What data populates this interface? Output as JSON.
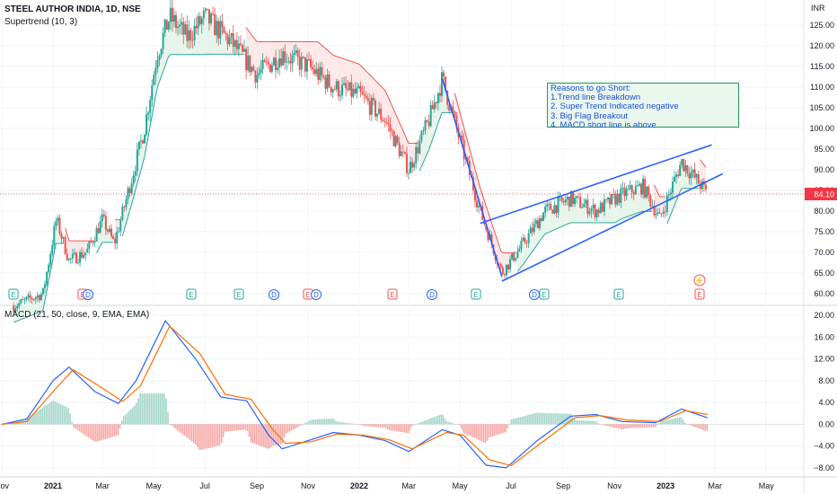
{
  "header": {
    "symbol": "STEEL AUTHOR INDIA, 1D, NSE",
    "indicator": "Supertrend (10, 3)",
    "macd_label": "MACD (21, 50, close, 9, EMA, EMA)",
    "currency": "INR"
  },
  "annotation": {
    "title": "Reasons to go Short:",
    "lines": [
      "1.Trend line Breakdown",
      "2. Super Trend Indicated negative",
      "3. Big Flag Breakout",
      "4. MACD short line is above"
    ]
  },
  "colors": {
    "up": "#26a69a",
    "down": "#ef5350",
    "trendline": "#2962ff",
    "macd": "#2962ff",
    "signal": "#ff6d00",
    "st_up_fill": "#e6f4ea",
    "st_down_fill": "#fde8e8",
    "price_tag": "#f23645"
  },
  "chart_data": [
    {
      "type": "candlestick",
      "title": "STEEL AUTHOR INDIA, 1D, NSE",
      "ylabel": "INR",
      "ylim": [
        58,
        130
      ],
      "y_ticks": [
        60.0,
        65.0,
        70.0,
        75.0,
        80.0,
        85.0,
        90.0,
        95.0,
        100.0,
        105.0,
        110.0,
        115.0,
        120.0,
        125.0
      ],
      "x_ticks": [
        "Nov",
        "2021",
        "Mar",
        "May",
        "Jul",
        "Sep",
        "Nov",
        "2022",
        "Mar",
        "May",
        "Jul",
        "Sep",
        "Nov",
        "2023",
        "Mar",
        "May"
      ],
      "last_price": "84.10",
      "approx_close_path": [
        {
          "x": "2020-11-15",
          "y": 57
        },
        {
          "x": "2020-12-20",
          "y": 60
        },
        {
          "x": "2021-01-05",
          "y": 78
        },
        {
          "x": "2021-01-20",
          "y": 68
        },
        {
          "x": "2021-02-10",
          "y": 70
        },
        {
          "x": "2021-03-01",
          "y": 78
        },
        {
          "x": "2021-03-15",
          "y": 72
        },
        {
          "x": "2021-04-05",
          "y": 88
        },
        {
          "x": "2021-04-20",
          "y": 100
        },
        {
          "x": "2021-05-05",
          "y": 118
        },
        {
          "x": "2021-05-20",
          "y": 127
        },
        {
          "x": "2021-06-10",
          "y": 122
        },
        {
          "x": "2021-07-01",
          "y": 127
        },
        {
          "x": "2021-08-01",
          "y": 121
        },
        {
          "x": "2021-09-01",
          "y": 113
        },
        {
          "x": "2021-10-01",
          "y": 118
        },
        {
          "x": "2021-11-01",
          "y": 115
        },
        {
          "x": "2021-12-01",
          "y": 110
        },
        {
          "x": "2022-01-01",
          "y": 108
        },
        {
          "x": "2022-02-01",
          "y": 102
        },
        {
          "x": "2022-03-01",
          "y": 90
        },
        {
          "x": "2022-03-25",
          "y": 102
        },
        {
          "x": "2022-04-10",
          "y": 112
        },
        {
          "x": "2022-05-01",
          "y": 97
        },
        {
          "x": "2022-05-25",
          "y": 80
        },
        {
          "x": "2022-06-20",
          "y": 65
        },
        {
          "x": "2022-07-15",
          "y": 72
        },
        {
          "x": "2022-08-10",
          "y": 80
        },
        {
          "x": "2022-09-10",
          "y": 83
        },
        {
          "x": "2022-10-10",
          "y": 80
        },
        {
          "x": "2022-11-10",
          "y": 84
        },
        {
          "x": "2022-12-05",
          "y": 86
        },
        {
          "x": "2022-12-25",
          "y": 78
        },
        {
          "x": "2023-01-20",
          "y": 92
        },
        {
          "x": "2023-02-05",
          "y": 88
        },
        {
          "x": "2023-02-20",
          "y": 84.1
        }
      ],
      "trendlines": [
        {
          "name": "downtrend",
          "from": {
            "x": "2022-04-10",
            "y": 112
          },
          "to": {
            "x": "2022-06-20",
            "y": 64
          }
        },
        {
          "name": "upper-channel",
          "from": {
            "x": "2022-05-25",
            "y": 77
          },
          "to": {
            "x": "2023-02-25",
            "y": 96
          }
        },
        {
          "name": "lower-channel",
          "from": {
            "x": "2022-06-20",
            "y": 63
          },
          "to": {
            "x": "2023-03-10",
            "y": 89
          }
        }
      ],
      "events": [
        "E",
        "E",
        "D",
        "E",
        "E",
        "D",
        "E",
        "D",
        "E",
        "D",
        "E",
        "E",
        "E"
      ]
    },
    {
      "type": "line",
      "title": "MACD (21, 50, close, 9, EMA, EMA)",
      "ylim": [
        -9.5,
        21
      ],
      "y_ticks": [
        -8.0,
        -4.0,
        0.0,
        4.0,
        8.0,
        12.0,
        16.0,
        20.0
      ],
      "series": [
        {
          "name": "MACD",
          "color": "#2962ff",
          "points": [
            {
              "x": "2020-11-01",
              "y": 0
            },
            {
              "x": "2020-12-01",
              "y": 1
            },
            {
              "x": "2021-01-01",
              "y": 8
            },
            {
              "x": "2021-01-20",
              "y": 10.5
            },
            {
              "x": "2021-02-20",
              "y": 6
            },
            {
              "x": "2021-03-20",
              "y": 3.8
            },
            {
              "x": "2021-04-10",
              "y": 8
            },
            {
              "x": "2021-05-15",
              "y": 19
            },
            {
              "x": "2021-06-20",
              "y": 12
            },
            {
              "x": "2021-07-20",
              "y": 5
            },
            {
              "x": "2021-08-20",
              "y": 4.3
            },
            {
              "x": "2021-09-15",
              "y": -2
            },
            {
              "x": "2021-10-01",
              "y": -4.5
            },
            {
              "x": "2021-11-01",
              "y": -3
            },
            {
              "x": "2021-12-01",
              "y": -1.5
            },
            {
              "x": "2022-01-01",
              "y": -2
            },
            {
              "x": "2022-02-01",
              "y": -3
            },
            {
              "x": "2022-03-01",
              "y": -5
            },
            {
              "x": "2022-04-10",
              "y": -1
            },
            {
              "x": "2022-05-01",
              "y": -2
            },
            {
              "x": "2022-06-01",
              "y": -7.5
            },
            {
              "x": "2022-06-25",
              "y": -8
            },
            {
              "x": "2022-08-01",
              "y": -3
            },
            {
              "x": "2022-09-10",
              "y": 1.5
            },
            {
              "x": "2022-10-10",
              "y": 1.8
            },
            {
              "x": "2022-11-10",
              "y": 0.5
            },
            {
              "x": "2022-12-20",
              "y": 0.3
            },
            {
              "x": "2023-01-20",
              "y": 2.8
            },
            {
              "x": "2023-02-20",
              "y": 1.2
            }
          ]
        },
        {
          "name": "Signal",
          "color": "#ff6d00",
          "points": [
            {
              "x": "2020-11-01",
              "y": 0
            },
            {
              "x": "2020-12-01",
              "y": 0.5
            },
            {
              "x": "2021-01-01",
              "y": 6
            },
            {
              "x": "2021-01-25",
              "y": 10
            },
            {
              "x": "2021-02-25",
              "y": 7
            },
            {
              "x": "2021-03-25",
              "y": 4.2
            },
            {
              "x": "2021-04-15",
              "y": 7
            },
            {
              "x": "2021-05-20",
              "y": 18
            },
            {
              "x": "2021-06-25",
              "y": 13
            },
            {
              "x": "2021-07-25",
              "y": 5.5
            },
            {
              "x": "2021-08-25",
              "y": 4.6
            },
            {
              "x": "2021-09-20",
              "y": -1
            },
            {
              "x": "2021-10-05",
              "y": -3.5
            },
            {
              "x": "2021-11-05",
              "y": -3.2
            },
            {
              "x": "2021-12-05",
              "y": -1.8
            },
            {
              "x": "2022-01-05",
              "y": -2
            },
            {
              "x": "2022-02-05",
              "y": -2.8
            },
            {
              "x": "2022-03-05",
              "y": -4.5
            },
            {
              "x": "2022-04-15",
              "y": -1.5
            },
            {
              "x": "2022-05-05",
              "y": -2
            },
            {
              "x": "2022-06-05",
              "y": -6.5
            },
            {
              "x": "2022-07-01",
              "y": -7.6
            },
            {
              "x": "2022-08-05",
              "y": -3.5
            },
            {
              "x": "2022-09-15",
              "y": 1.2
            },
            {
              "x": "2022-10-15",
              "y": 1.6
            },
            {
              "x": "2022-11-15",
              "y": 0.8
            },
            {
              "x": "2022-12-25",
              "y": 0.5
            },
            {
              "x": "2023-01-25",
              "y": 2.5
            },
            {
              "x": "2023-02-20",
              "y": 1.8
            }
          ]
        }
      ]
    }
  ]
}
